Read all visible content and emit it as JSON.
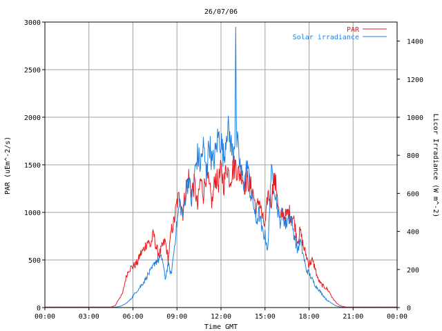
{
  "chart_data": {
    "type": "line",
    "title": "26/07/06",
    "xlabel": "Time GMT",
    "ylabel_left": "PAR (uEm^-2/s)",
    "ylabel_right": "Licor Irradiance (W m^-2)",
    "x_unit": "hours GMT",
    "xlim": [
      0,
      24
    ],
    "x_ticks": [
      "00:00",
      "03:00",
      "06:00",
      "09:00",
      "12:00",
      "15:00",
      "18:00",
      "21:00",
      "00:00"
    ],
    "ylim_left": [
      0,
      3000
    ],
    "y_ticks_left": [
      "0",
      "500",
      "1000",
      "1500",
      "2000",
      "2500",
      "3000"
    ],
    "ylim_right": [
      0,
      1500
    ],
    "y_ticks_right": [
      "0",
      "200",
      "400",
      "600",
      "800",
      "1000",
      "1200",
      "1400"
    ],
    "grid": true,
    "legend_position": "top-right",
    "series": [
      {
        "name": "PAR",
        "axis": "left",
        "color": "#e8171c",
        "x": [
          0,
          4.5,
          4.8,
          5.0,
          5.3,
          5.5,
          5.7,
          6.0,
          6.3,
          6.5,
          6.7,
          7.0,
          7.2,
          7.4,
          7.6,
          7.8,
          8.0,
          8.2,
          8.4,
          8.6,
          8.8,
          9.0,
          9.2,
          9.4,
          9.6,
          9.8,
          10.0,
          10.2,
          10.4,
          10.6,
          10.8,
          11.0,
          11.2,
          11.4,
          11.6,
          11.8,
          12.0,
          12.2,
          12.4,
          12.6,
          12.8,
          13.0,
          13.2,
          13.4,
          13.6,
          13.8,
          14.0,
          14.2,
          14.4,
          14.6,
          14.8,
          15.0,
          15.2,
          15.4,
          15.6,
          15.8,
          16.0,
          16.2,
          16.4,
          16.6,
          16.8,
          17.0,
          17.2,
          17.4,
          17.6,
          17.8,
          18.0,
          18.2,
          18.4,
          18.6,
          18.8,
          19.0,
          19.2,
          19.4,
          19.6,
          19.8,
          20.0,
          20.2,
          20.4,
          20.6,
          21.0,
          24.0
        ],
        "values": [
          5,
          5,
          20,
          80,
          150,
          300,
          400,
          430,
          470,
          560,
          600,
          700,
          650,
          780,
          620,
          560,
          640,
          700,
          500,
          800,
          900,
          1100,
          1180,
          1000,
          1250,
          1380,
          1220,
          1300,
          1050,
          1350,
          1200,
          1420,
          1250,
          1100,
          1380,
          1300,
          1450,
          1300,
          1500,
          1350,
          1450,
          1500,
          1400,
          1420,
          1300,
          1350,
          1280,
          1200,
          1000,
          1150,
          950,
          850,
          1200,
          1100,
          1350,
          1250,
          900,
          1000,
          950,
          1000,
          980,
          900,
          700,
          800,
          650,
          550,
          450,
          500,
          420,
          300,
          250,
          220,
          200,
          160,
          100,
          60,
          30,
          15,
          8,
          5,
          5,
          5
        ]
      },
      {
        "name": "Solar irradiance",
        "axis": "right",
        "color": "#1e7fe0",
        "x": [
          0,
          4.8,
          5.2,
          5.5,
          5.8,
          6.0,
          6.3,
          6.5,
          6.7,
          7.0,
          7.3,
          7.5,
          7.7,
          8.0,
          8.2,
          8.4,
          8.6,
          8.8,
          9.0,
          9.2,
          9.4,
          9.6,
          9.8,
          10.0,
          10.2,
          10.4,
          10.6,
          10.8,
          11.0,
          11.2,
          11.4,
          11.6,
          11.8,
          12.0,
          12.2,
          12.4,
          12.6,
          12.8,
          12.95,
          13.0,
          13.05,
          13.2,
          13.4,
          13.6,
          13.8,
          14.0,
          14.2,
          14.4,
          14.6,
          14.8,
          15.0,
          15.2,
          15.4,
          15.6,
          15.8,
          16.0,
          16.2,
          16.4,
          16.6,
          16.8,
          17.0,
          17.2,
          17.4,
          17.6,
          17.8,
          18.0,
          18.2,
          18.4,
          18.6,
          18.8,
          19.0,
          19.2,
          19.4,
          19.6,
          19.8,
          20.0,
          20.2,
          20.4,
          21.0,
          24.0
        ],
        "values": [
          2,
          2,
          8,
          20,
          40,
          60,
          90,
          110,
          130,
          170,
          200,
          240,
          250,
          260,
          150,
          230,
          170,
          300,
          450,
          550,
          480,
          600,
          680,
          550,
          700,
          800,
          750,
          850,
          700,
          880,
          750,
          800,
          900,
          880,
          780,
          950,
          900,
          800,
          900,
          1500,
          900,
          800,
          700,
          650,
          760,
          600,
          550,
          450,
          500,
          400,
          380,
          300,
          700,
          660,
          550,
          450,
          500,
          430,
          480,
          460,
          380,
          300,
          350,
          280,
          200,
          180,
          150,
          120,
          100,
          80,
          60,
          40,
          30,
          20,
          10,
          5,
          2,
          2,
          2,
          2
        ]
      }
    ]
  }
}
